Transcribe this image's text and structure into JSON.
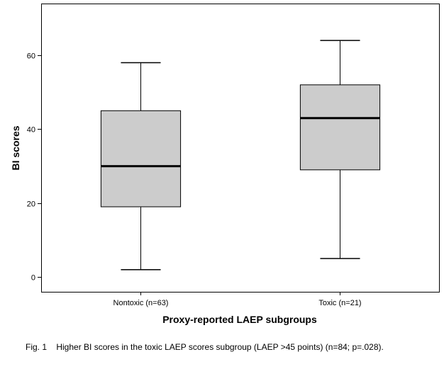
{
  "chart_data": {
    "type": "box",
    "title": "",
    "xlabel": "Proxy-reported LAEP subgroups",
    "ylabel": "BI scores",
    "ylim": [
      -4,
      74
    ],
    "yticks": [
      0,
      20,
      40,
      60
    ],
    "ytick_labels": [
      "0",
      "20",
      "40",
      "60"
    ],
    "grid": false,
    "categories": [
      "Nontoxic  (n=63)",
      "Toxic  (n=21)"
    ],
    "boxes": [
      {
        "name": "Nontoxic  (n=63)",
        "min": 2,
        "q1": 19,
        "median": 30,
        "q3": 45,
        "max": 58
      },
      {
        "name": "Toxic  (n=21)",
        "min": 5,
        "q1": 29,
        "median": 43,
        "q3": 52,
        "max": 64
      }
    ],
    "box_fill": "#cccccc",
    "caption": "Fig. 1    Higher BI scores in the toxic LAEP scores subgroup (LAEP >45 points) (n=84; p=.028)."
  }
}
